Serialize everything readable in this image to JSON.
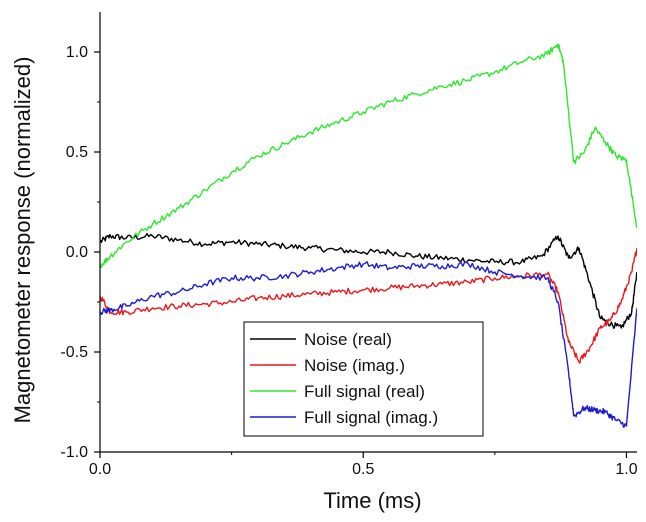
{
  "chart_data": {
    "type": "line",
    "title": "",
    "xlabel": "Time (ms)",
    "ylabel": "Magnetometer response (normalized)",
    "xlim": [
      0.0,
      1.02
    ],
    "ylim": [
      -1.0,
      1.2
    ],
    "x_ticks": [
      {
        "value": 0.0,
        "label": "0.0"
      },
      {
        "value": 0.5,
        "label": "0.5"
      },
      {
        "value": 1.0,
        "label": "1.0"
      }
    ],
    "y_ticks": [
      {
        "value": -1.0,
        "label": "-1.0"
      },
      {
        "value": -0.5,
        "label": "-0.5"
      },
      {
        "value": 0.0,
        "label": "0.0"
      },
      {
        "value": 0.5,
        "label": "0.5"
      },
      {
        "value": 1.0,
        "label": "1.0"
      }
    ],
    "grid": false,
    "legend_position": "bottom-center",
    "series": [
      {
        "name": "Noise (real)",
        "color": "#000000",
        "points": [
          [
            0.0,
            0.05
          ],
          [
            0.02,
            0.08
          ],
          [
            0.05,
            0.07
          ],
          [
            0.1,
            0.08
          ],
          [
            0.15,
            0.06
          ],
          [
            0.2,
            0.04
          ],
          [
            0.25,
            0.05
          ],
          [
            0.3,
            0.04
          ],
          [
            0.35,
            0.03
          ],
          [
            0.4,
            0.02
          ],
          [
            0.45,
            0.01
          ],
          [
            0.5,
            0.0
          ],
          [
            0.55,
            0.0
          ],
          [
            0.6,
            -0.02
          ],
          [
            0.65,
            -0.03
          ],
          [
            0.7,
            -0.04
          ],
          [
            0.75,
            -0.05
          ],
          [
            0.8,
            -0.05
          ],
          [
            0.84,
            -0.02
          ],
          [
            0.87,
            0.08
          ],
          [
            0.89,
            -0.03
          ],
          [
            0.91,
            0.02
          ],
          [
            0.93,
            -0.15
          ],
          [
            0.95,
            -0.33
          ],
          [
            0.97,
            -0.36
          ],
          [
            0.99,
            -0.38
          ],
          [
            1.01,
            -0.3
          ],
          [
            1.02,
            -0.1
          ]
        ]
      },
      {
        "name": "Noise (imag.)",
        "color": "#e8191c",
        "points": [
          [
            0.0,
            -0.22
          ],
          [
            0.02,
            -0.3
          ],
          [
            0.05,
            -0.3
          ],
          [
            0.1,
            -0.28
          ],
          [
            0.15,
            -0.27
          ],
          [
            0.2,
            -0.26
          ],
          [
            0.25,
            -0.25
          ],
          [
            0.3,
            -0.23
          ],
          [
            0.35,
            -0.22
          ],
          [
            0.4,
            -0.21
          ],
          [
            0.45,
            -0.2
          ],
          [
            0.5,
            -0.19
          ],
          [
            0.55,
            -0.18
          ],
          [
            0.6,
            -0.17
          ],
          [
            0.65,
            -0.16
          ],
          [
            0.7,
            -0.15
          ],
          [
            0.75,
            -0.13
          ],
          [
            0.8,
            -0.12
          ],
          [
            0.85,
            -0.11
          ],
          [
            0.87,
            -0.2
          ],
          [
            0.89,
            -0.45
          ],
          [
            0.91,
            -0.55
          ],
          [
            0.93,
            -0.48
          ],
          [
            0.95,
            -0.38
          ],
          [
            0.97,
            -0.34
          ],
          [
            0.99,
            -0.25
          ],
          [
            1.01,
            -0.1
          ],
          [
            1.02,
            0.02
          ]
        ]
      },
      {
        "name": "Full signal (real)",
        "color": "#2ee82e",
        "points": [
          [
            0.0,
            -0.07
          ],
          [
            0.02,
            -0.02
          ],
          [
            0.05,
            0.05
          ],
          [
            0.1,
            0.14
          ],
          [
            0.15,
            0.22
          ],
          [
            0.2,
            0.31
          ],
          [
            0.25,
            0.4
          ],
          [
            0.3,
            0.48
          ],
          [
            0.35,
            0.54
          ],
          [
            0.4,
            0.6
          ],
          [
            0.45,
            0.65
          ],
          [
            0.5,
            0.7
          ],
          [
            0.55,
            0.75
          ],
          [
            0.6,
            0.79
          ],
          [
            0.65,
            0.83
          ],
          [
            0.7,
            0.86
          ],
          [
            0.75,
            0.9
          ],
          [
            0.8,
            0.95
          ],
          [
            0.85,
            0.99
          ],
          [
            0.87,
            1.04
          ],
          [
            0.88,
            0.95
          ],
          [
            0.9,
            0.45
          ],
          [
            0.92,
            0.5
          ],
          [
            0.94,
            0.62
          ],
          [
            0.96,
            0.55
          ],
          [
            0.98,
            0.48
          ],
          [
            1.0,
            0.46
          ],
          [
            1.02,
            0.12
          ]
        ]
      },
      {
        "name": "Full signal (imag.)",
        "color": "#1c1cd2",
        "points": [
          [
            0.0,
            -0.3
          ],
          [
            0.02,
            -0.29
          ],
          [
            0.05,
            -0.27
          ],
          [
            0.1,
            -0.22
          ],
          [
            0.15,
            -0.2
          ],
          [
            0.2,
            -0.16
          ],
          [
            0.25,
            -0.13
          ],
          [
            0.3,
            -0.13
          ],
          [
            0.35,
            -0.12
          ],
          [
            0.4,
            -0.1
          ],
          [
            0.45,
            -0.08
          ],
          [
            0.5,
            -0.06
          ],
          [
            0.55,
            -0.08
          ],
          [
            0.6,
            -0.07
          ],
          [
            0.65,
            -0.07
          ],
          [
            0.7,
            -0.06
          ],
          [
            0.75,
            -0.1
          ],
          [
            0.8,
            -0.12
          ],
          [
            0.85,
            -0.13
          ],
          [
            0.87,
            -0.25
          ],
          [
            0.89,
            -0.6
          ],
          [
            0.9,
            -0.82
          ],
          [
            0.92,
            -0.78
          ],
          [
            0.94,
            -0.79
          ],
          [
            0.96,
            -0.8
          ],
          [
            0.98,
            -0.84
          ],
          [
            1.0,
            -0.87
          ],
          [
            1.02,
            -0.28
          ]
        ]
      }
    ]
  }
}
